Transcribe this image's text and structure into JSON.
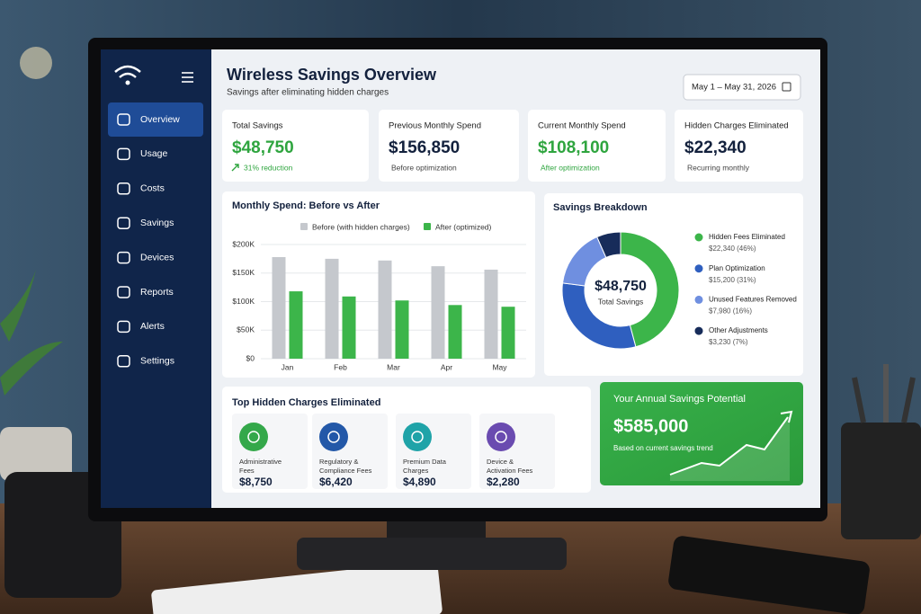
{
  "sidebar": {
    "nav": [
      "Overview",
      "Usage",
      "Costs",
      "Savings",
      "Devices",
      "Reports",
      "Alerts",
      "Settings"
    ]
  },
  "header": {
    "title": "Wireless Savings Overview",
    "subtitle": "Savings after eliminating hidden charges",
    "date_range": "May 1 – May 31, 2026"
  },
  "kpis": [
    {
      "label": "Total Savings",
      "value": "$48,750",
      "note": "31% reduction"
    },
    {
      "label": "Previous Monthly Spend",
      "value": "$156,850",
      "note": "Before optimization"
    },
    {
      "label": "Current Monthly Spend",
      "value": "$108,100",
      "note": "After optimization"
    },
    {
      "label": "Hidden Charges Eliminated",
      "value": "$22,340",
      "note": "Recurring monthly"
    }
  ],
  "chart_data": [
    {
      "type": "bar",
      "title": "Monthly Spend: Before vs After",
      "categories": [
        "Jan",
        "Feb",
        "Mar",
        "Apr",
        "May"
      ],
      "series": [
        {
          "name": "Before (with hidden charges)",
          "color": "#c5c8cd",
          "values": [
            178000,
            175000,
            172000,
            162000,
            156000
          ]
        },
        {
          "name": "After (optimized)",
          "color": "#3cb54a",
          "values": [
            118000,
            109000,
            102000,
            94000,
            91000
          ]
        }
      ],
      "ylim": [
        0,
        200000
      ],
      "yticks": [
        {
          "value": 0,
          "label": "$0"
        },
        {
          "value": 50000,
          "label": "$50K"
        },
        {
          "value": 100000,
          "label": "$100K"
        },
        {
          "value": 150000,
          "label": "$150K"
        },
        {
          "value": 200000,
          "label": "$200K"
        }
      ],
      "grid": true
    },
    {
      "type": "pie",
      "title": "Savings Breakdown",
      "center_label": "$48,750",
      "center_sublabel": "Total Savings",
      "categories": [
        "Hidden Fees Eliminated",
        "Plan Optimization",
        "Unused Features Removed",
        "Other Adjustments"
      ],
      "values": [
        22340,
        15200,
        7980,
        3230
      ],
      "value_labels": [
        "$22,340 (46%)",
        "$15,200 (31%)",
        "$7,980 (16%)",
        "$3,230 (7%)"
      ],
      "colors": [
        "#3cb54a",
        "#2f5fbf",
        "#6f8fe0",
        "#172c5a"
      ]
    }
  ],
  "hidden_charges": {
    "title": "Top Hidden Charges Eliminated",
    "items": [
      {
        "label": "Administrative Fees",
        "amount": "$8,750"
      },
      {
        "label": "Regulatory & Compliance Fees",
        "amount": "$6,420"
      },
      {
        "label": "Premium Data Charges",
        "amount": "$4,890"
      },
      {
        "label": "Device & Activation Fees",
        "amount": "$2,280"
      }
    ]
  },
  "annual": {
    "title": "Your Annual Savings Potential",
    "amount": "$585,000",
    "note": "Based on current savings trend"
  }
}
